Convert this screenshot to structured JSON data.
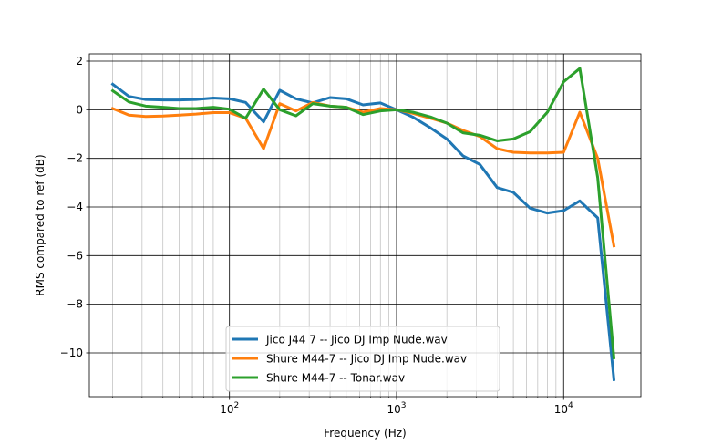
{
  "chart_data": {
    "type": "line",
    "title": "",
    "xlabel": "Frequency (Hz)",
    "ylabel": "RMS compared to ref (dB)",
    "xscale": "log",
    "xlim": [
      14.5,
      29000
    ],
    "ylim": [
      -11.8,
      2.3
    ],
    "yticks": [
      2,
      0,
      -2,
      -4,
      -6,
      -8,
      -10
    ],
    "ytick_labels": [
      "2",
      "0",
      "−2",
      "−4",
      "−6",
      "−8",
      "−10"
    ],
    "xticks": [
      100,
      1000,
      10000
    ],
    "xtick_labels": [
      {
        "base": "10",
        "exp": "2"
      },
      {
        "base": "10",
        "exp": "3"
      },
      {
        "base": "10",
        "exp": "4"
      }
    ],
    "grid": "major and minor on both axes",
    "legend_position": "lower-center",
    "x": [
      20,
      25,
      31.5,
      40,
      50,
      63,
      80,
      100,
      125,
      160,
      200,
      250,
      315,
      400,
      500,
      630,
      800,
      1000,
      1250,
      1600,
      2000,
      2500,
      3150,
      4000,
      5000,
      6300,
      8000,
      10000,
      12500,
      16000,
      20000
    ],
    "series": [
      {
        "name": "Jico J44 7 -- Jico DJ Imp Nude.wav",
        "color": "#1f77b4",
        "values": [
          1.05,
          0.55,
          0.42,
          0.4,
          0.4,
          0.42,
          0.48,
          0.45,
          0.3,
          -0.5,
          0.8,
          0.45,
          0.28,
          0.5,
          0.45,
          0.2,
          0.28,
          0.0,
          -0.3,
          -0.75,
          -1.2,
          -1.9,
          -2.25,
          -3.2,
          -3.4,
          -4.05,
          -4.25,
          -4.15,
          -3.75,
          -4.45,
          -11.1
        ]
      },
      {
        "name": "Shure M44-7 -- Jico DJ Imp Nude.wav",
        "color": "#ff7f0e",
        "values": [
          0.05,
          -0.22,
          -0.28,
          -0.26,
          -0.22,
          -0.18,
          -0.12,
          -0.12,
          -0.35,
          -1.6,
          0.25,
          -0.05,
          0.3,
          0.15,
          0.1,
          -0.1,
          0.05,
          0.0,
          -0.15,
          -0.35,
          -0.55,
          -0.85,
          -1.1,
          -1.6,
          -1.75,
          -1.78,
          -1.78,
          -1.75,
          -0.1,
          -2.0,
          -5.6
        ]
      },
      {
        "name": "Shure M44-7 -- Tonar.wav",
        "color": "#2ca02c",
        "values": [
          0.78,
          0.32,
          0.15,
          0.1,
          0.05,
          0.05,
          0.1,
          0.02,
          -0.35,
          0.85,
          0.0,
          -0.25,
          0.25,
          0.15,
          0.1,
          -0.2,
          -0.05,
          0.0,
          -0.1,
          -0.3,
          -0.55,
          -0.95,
          -1.05,
          -1.28,
          -1.2,
          -0.9,
          -0.1,
          1.15,
          1.7,
          -2.8,
          -10.2
        ]
      }
    ]
  }
}
